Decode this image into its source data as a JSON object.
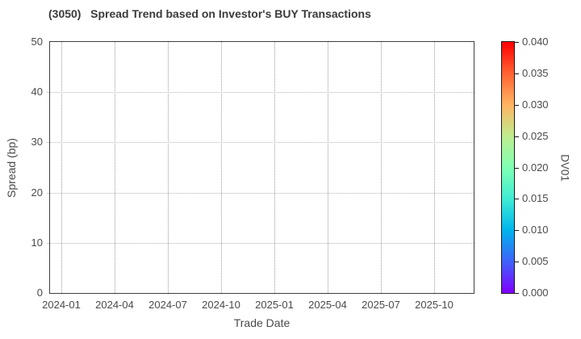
{
  "chart_data": {
    "type": "scatter",
    "title": "(3050)   Spread Trend based on Investor's BUY Transactions",
    "xlabel": "Trade Date",
    "ylabel": "Spread (bp)",
    "x_tick_labels": [
      "2024-01",
      "2024-04",
      "2024-07",
      "2024-10",
      "2025-01",
      "2025-04",
      "2025-07",
      "2025-10"
    ],
    "y_ticks": [
      0,
      10,
      20,
      30,
      40,
      50
    ],
    "ylim": [
      0,
      50
    ],
    "grid": true,
    "series": [],
    "points": [],
    "colorbar": {
      "label": "DV01",
      "ticks_bottom_to_top": [
        "0.000",
        "0.005",
        "0.010",
        "0.015",
        "0.020",
        "0.025",
        "0.030",
        "0.035",
        "0.040"
      ],
      "range": [
        0.0,
        0.04
      ],
      "colormap": "rainbow",
      "gradient_stops_bottom_to_top": [
        {
          "pos": 0,
          "color": "#8000ff"
        },
        {
          "pos": 12.5,
          "color": "#4062fa"
        },
        {
          "pos": 25,
          "color": "#00b4ec"
        },
        {
          "pos": 37.5,
          "color": "#40ecd4"
        },
        {
          "pos": 50,
          "color": "#80ffb4"
        },
        {
          "pos": 62.5,
          "color": "#bfec8e"
        },
        {
          "pos": 75,
          "color": "#ffb462"
        },
        {
          "pos": 87.5,
          "color": "#ff6232"
        },
        {
          "pos": 100,
          "color": "#ff0000"
        }
      ]
    },
    "colors": {
      "background": "#ffffff",
      "spine": "#3f3f3f",
      "grid": "#a8a8a8",
      "tick_text": "#4a4a4a",
      "title_text": "#3a3a3a"
    }
  }
}
